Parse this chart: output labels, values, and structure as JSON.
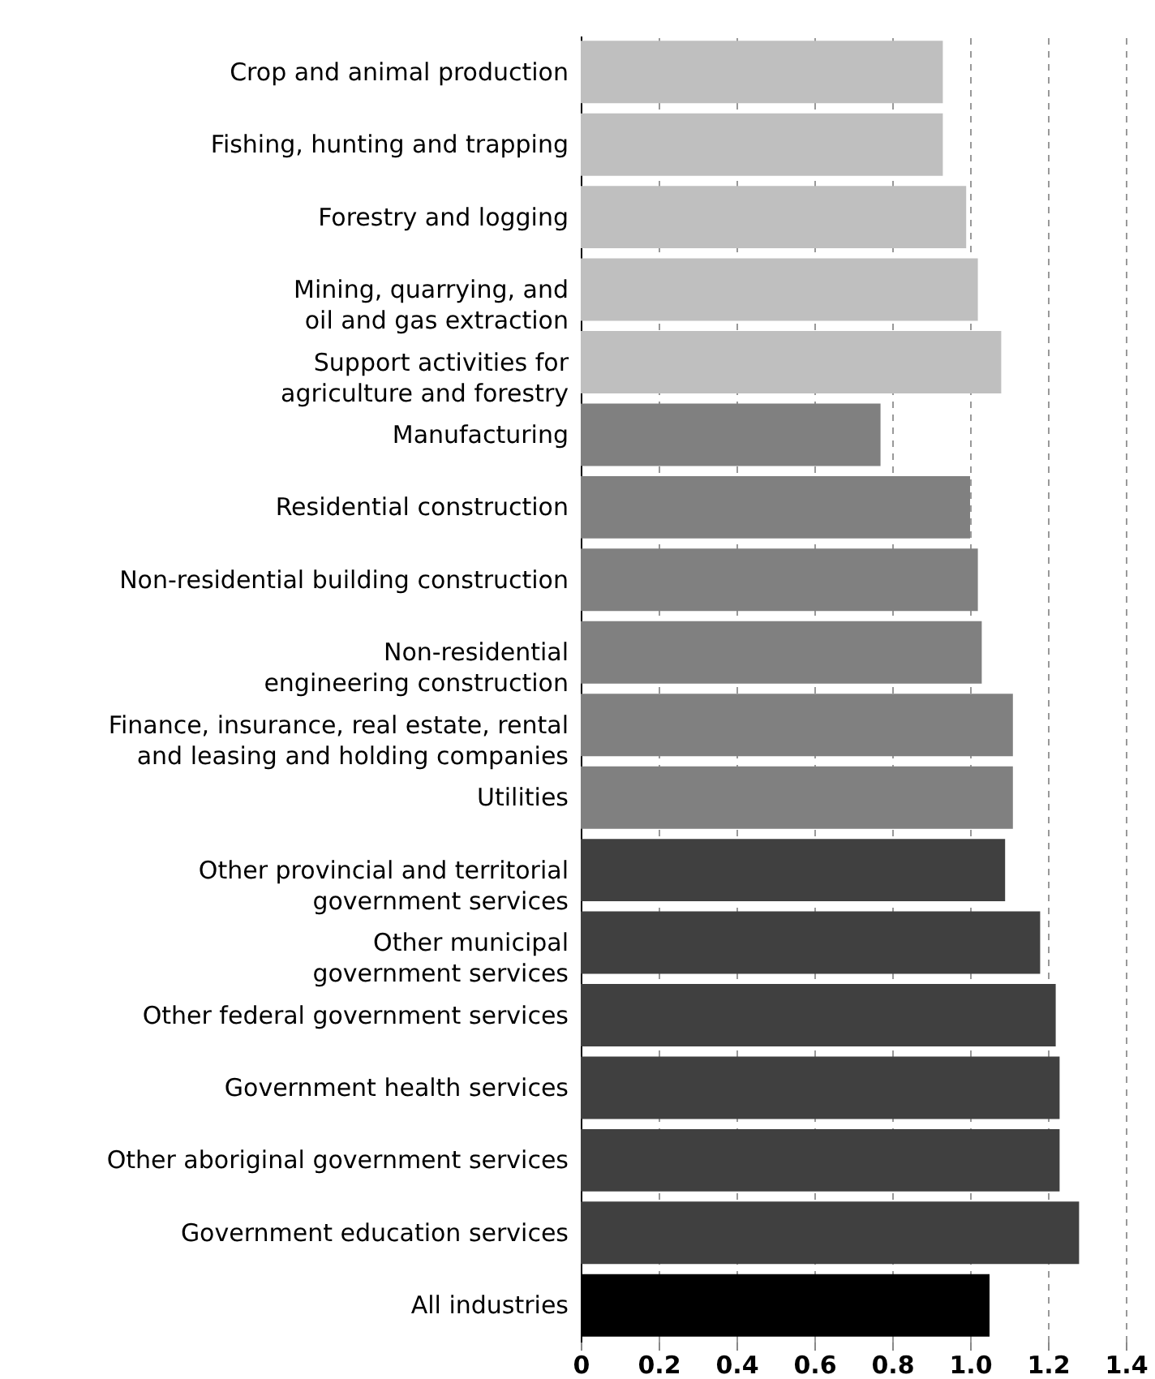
{
  "chart_data": {
    "type": "bar",
    "orientation": "horizontal",
    "categories": [
      "Crop and animal production",
      "Fishing, hunting and trapping",
      "Forestry and logging",
      "Mining, quarrying, and\noil and gas extraction",
      "Support activities for\nagriculture and forestry",
      "Manufacturing",
      "Residential construction",
      "Non-residential building construction",
      "Non-residential\nengineering construction",
      "Finance, insurance, real estate, rental\nand leasing and holding companies",
      "Utilities",
      "Other provincial and territorial\ngovernment services",
      "Other municipal\ngovernment services",
      "Other federal government services",
      "Government health services",
      "Other aboriginal government services",
      "Government education services",
      "All industries"
    ],
    "values": [
      0.93,
      0.93,
      0.99,
      1.02,
      1.08,
      0.77,
      1.0,
      1.02,
      1.03,
      1.11,
      1.11,
      1.09,
      1.18,
      1.22,
      1.23,
      1.23,
      1.28,
      1.05
    ],
    "colors": [
      "#bfbfbf",
      "#bfbfbf",
      "#bfbfbf",
      "#bfbfbf",
      "#bfbfbf",
      "#808080",
      "#808080",
      "#808080",
      "#808080",
      "#808080",
      "#808080",
      "#404040",
      "#404040",
      "#404040",
      "#404040",
      "#404040",
      "#404040",
      "#000000"
    ],
    "xlim": [
      0,
      1.4
    ],
    "xticks": [
      0,
      {
        "value": 0.2,
        "label": "0.2"
      },
      {
        "value": 0.4,
        "label": "0.4"
      },
      {
        "value": 0.6,
        "label": "0.6"
      },
      {
        "value": 0.8,
        "label": "0.8"
      },
      {
        "value": 1,
        "label": "1.0"
      },
      {
        "value": 1.2,
        "label": "1.2"
      },
      {
        "value": 1.4,
        "label": "1.4"
      }
    ],
    "grid": "x"
  }
}
